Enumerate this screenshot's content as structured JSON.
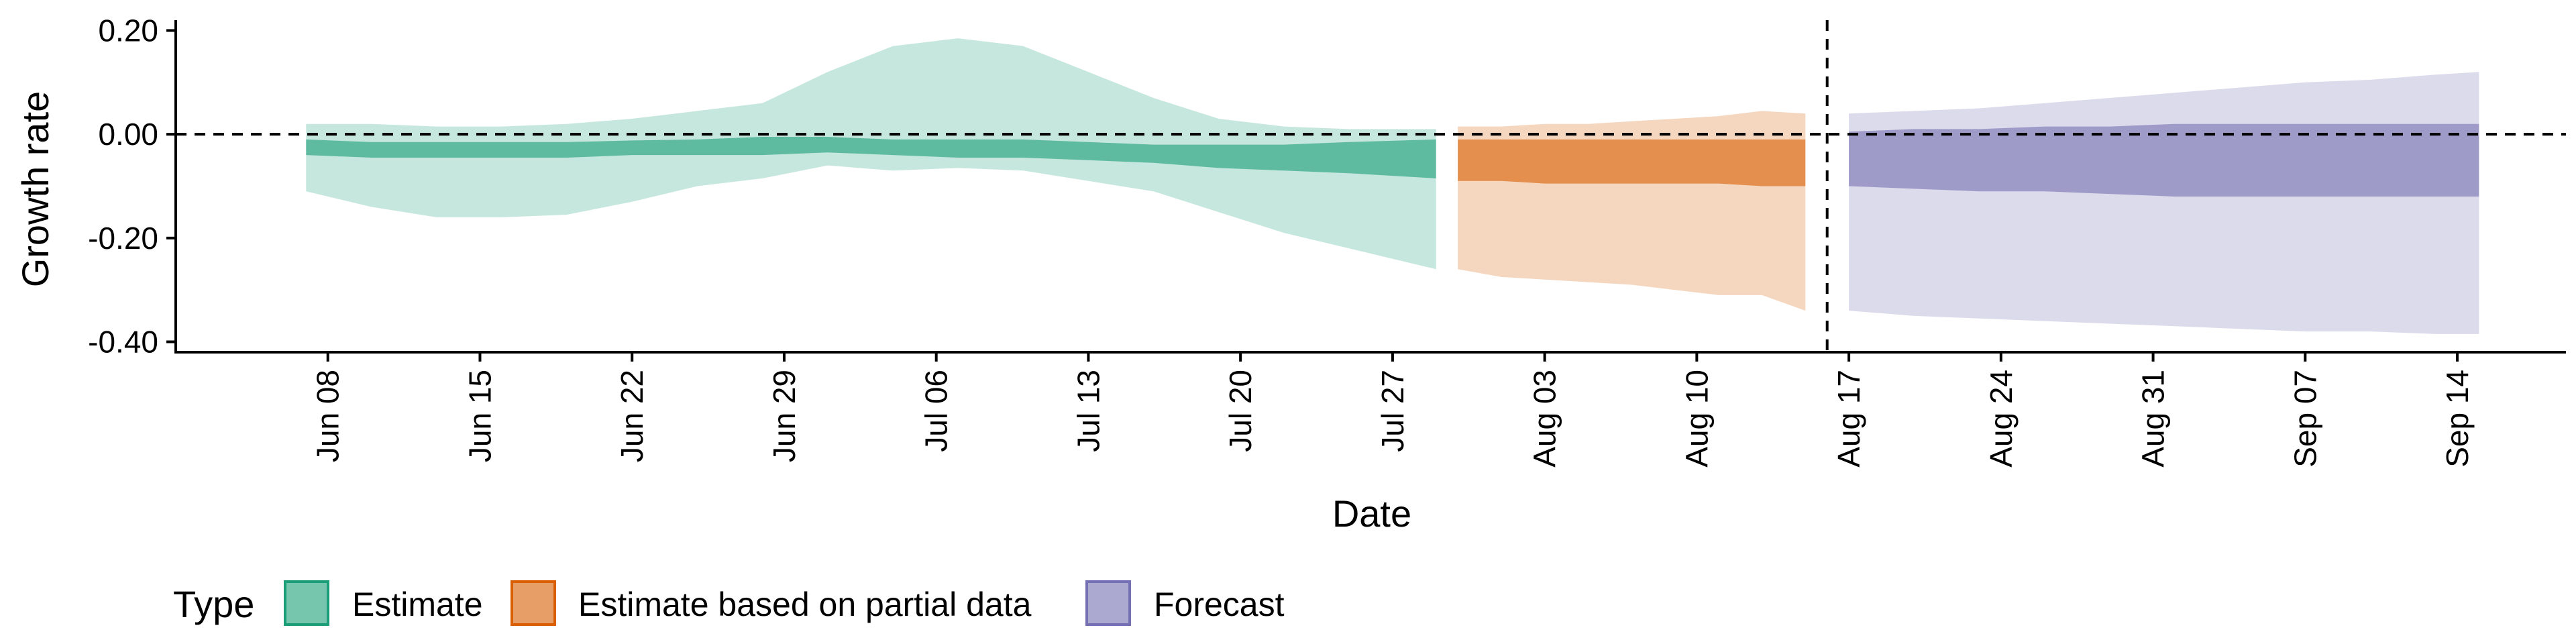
{
  "chart_data": {
    "type": "area",
    "title": "",
    "xlabel": "Date",
    "ylabel": "Growth rate",
    "x_type": "date",
    "xlim": [
      "2020-06-01",
      "2020-09-19"
    ],
    "ylim": [
      -0.42,
      0.22
    ],
    "y_ticks": [
      0.2,
      0.0,
      -0.2,
      -0.4
    ],
    "y_tick_labels": [
      "0.20",
      "0.00",
      "-0.20",
      "-0.40"
    ],
    "x_ticks": [
      "2020-06-08",
      "2020-06-15",
      "2020-06-22",
      "2020-06-29",
      "2020-07-06",
      "2020-07-13",
      "2020-07-20",
      "2020-07-27",
      "2020-08-03",
      "2020-08-10",
      "2020-08-17",
      "2020-08-24",
      "2020-08-31",
      "2020-09-07",
      "2020-09-14"
    ],
    "x_tick_labels": [
      "Jun 08",
      "Jun 15",
      "Jun 22",
      "Jun 29",
      "Jul 06",
      "Jul 13",
      "Jul 20",
      "Jul 27",
      "Aug 03",
      "Aug 10",
      "Aug 17",
      "Aug 24",
      "Aug 31",
      "Sep 07",
      "Sep 14"
    ],
    "hline_y": 0,
    "vline_x": "2020-08-16",
    "grid": false,
    "legend_position": "bottom",
    "legend_title": "Type",
    "series": [
      {
        "name": "Estimate",
        "color": "#1b9e77",
        "x": [
          "2020-06-07",
          "2020-06-10",
          "2020-06-13",
          "2020-06-16",
          "2020-06-19",
          "2020-06-22",
          "2020-06-25",
          "2020-06-28",
          "2020-07-01",
          "2020-07-04",
          "2020-07-07",
          "2020-07-10",
          "2020-07-13",
          "2020-07-16",
          "2020-07-19",
          "2020-07-22",
          "2020-07-25",
          "2020-07-29"
        ],
        "outer_lo": [
          -0.11,
          -0.14,
          -0.16,
          -0.16,
          -0.155,
          -0.13,
          -0.1,
          -0.085,
          -0.06,
          -0.07,
          -0.065,
          -0.07,
          -0.09,
          -0.11,
          -0.15,
          -0.19,
          -0.22,
          -0.26
        ],
        "outer_hi": [
          0.02,
          0.02,
          0.015,
          0.015,
          0.02,
          0.03,
          0.045,
          0.06,
          0.12,
          0.17,
          0.185,
          0.17,
          0.12,
          0.07,
          0.03,
          0.015,
          0.01,
          0.01
        ],
        "inner_lo": [
          -0.04,
          -0.045,
          -0.045,
          -0.045,
          -0.045,
          -0.04,
          -0.04,
          -0.04,
          -0.035,
          -0.04,
          -0.045,
          -0.045,
          -0.05,
          -0.055,
          -0.065,
          -0.07,
          -0.075,
          -0.085
        ],
        "inner_hi": [
          -0.01,
          -0.015,
          -0.015,
          -0.015,
          -0.015,
          -0.012,
          -0.01,
          -0.005,
          -0.005,
          -0.01,
          -0.01,
          -0.01,
          -0.015,
          -0.02,
          -0.02,
          -0.02,
          -0.015,
          -0.01
        ]
      },
      {
        "name": "Estimate based on partial data",
        "color": "#d95f02",
        "x": [
          "2020-07-30",
          "2020-08-01",
          "2020-08-03",
          "2020-08-05",
          "2020-08-07",
          "2020-08-09",
          "2020-08-11",
          "2020-08-13",
          "2020-08-15"
        ],
        "outer_lo": [
          -0.26,
          -0.275,
          -0.28,
          -0.285,
          -0.29,
          -0.3,
          -0.31,
          -0.31,
          -0.34
        ],
        "outer_hi": [
          0.015,
          0.015,
          0.02,
          0.02,
          0.025,
          0.03,
          0.035,
          0.045,
          0.04
        ],
        "inner_lo": [
          -0.09,
          -0.09,
          -0.095,
          -0.095,
          -0.095,
          -0.095,
          -0.095,
          -0.1,
          -0.1
        ],
        "inner_hi": [
          -0.01,
          -0.01,
          -0.01,
          -0.01,
          -0.01,
          -0.01,
          -0.01,
          -0.01,
          -0.01
        ]
      },
      {
        "name": "Forecast",
        "color": "#7570b3",
        "x": [
          "2020-08-17",
          "2020-08-20",
          "2020-08-23",
          "2020-08-26",
          "2020-08-29",
          "2020-09-01",
          "2020-09-04",
          "2020-09-07",
          "2020-09-10",
          "2020-09-13",
          "2020-09-15"
        ],
        "outer_lo": [
          -0.34,
          -0.35,
          -0.355,
          -0.36,
          -0.365,
          -0.37,
          -0.375,
          -0.38,
          -0.38,
          -0.385,
          -0.385
        ],
        "outer_hi": [
          0.04,
          0.045,
          0.05,
          0.06,
          0.07,
          0.08,
          0.09,
          0.1,
          0.105,
          0.115,
          0.12
        ],
        "inner_lo": [
          -0.1,
          -0.105,
          -0.11,
          -0.11,
          -0.115,
          -0.12,
          -0.12,
          -0.12,
          -0.12,
          -0.12,
          -0.12
        ],
        "inner_hi": [
          0.005,
          0.01,
          0.01,
          0.015,
          0.015,
          0.02,
          0.02,
          0.02,
          0.02,
          0.02,
          0.02
        ]
      }
    ]
  }
}
